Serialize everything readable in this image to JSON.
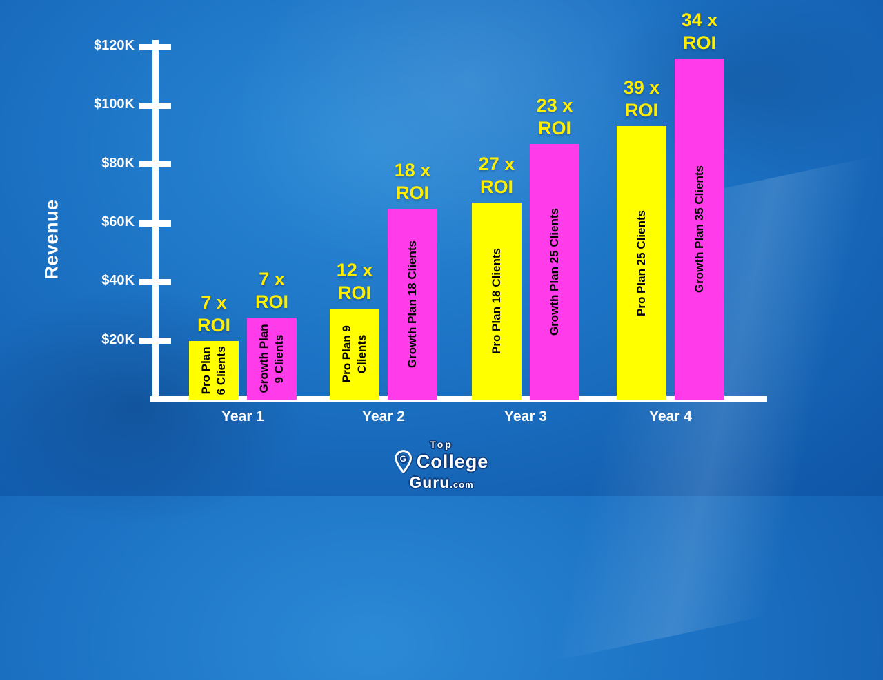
{
  "chart_data": {
    "type": "bar",
    "ylabel": "Revenue",
    "xlabel": "",
    "categories": [
      "Year 1",
      "Year 2",
      "Year 3",
      "Year 4"
    ],
    "ylim": [
      0,
      120
    ],
    "value_unit": "$K",
    "grid": false,
    "legend_position": "none",
    "y_ticks": [
      {
        "label": "$20K",
        "value": 20
      },
      {
        "label": "$40K",
        "value": 40
      },
      {
        "label": "$60K",
        "value": 60
      },
      {
        "label": "$80K",
        "value": 80
      },
      {
        "label": "$100K",
        "value": 100
      },
      {
        "label": "$120K",
        "value": 120
      }
    ],
    "series": [
      {
        "name": "Pro Plan",
        "color": "#FFFF00",
        "values": [
          20,
          31,
          67,
          93
        ],
        "bar_labels": [
          "Pro Plan 6 Clients",
          "Pro Plan 9 Clients",
          "Pro Plan 18 Clients",
          "Pro Plan 25 Clients"
        ],
        "roi_labels": [
          "7 x\nROI",
          "12 x\nROI",
          "27 x\nROI",
          "39 x\nROI"
        ]
      },
      {
        "name": "Growth Plan",
        "color": "#FF3BEA",
        "values": [
          28,
          65,
          87,
          116
        ],
        "bar_labels": [
          "Growth Plan 9 Clients",
          "Growth Plan 18 Clients",
          "Growth Plan 25 Clients",
          "Growth Plan 35 Clients"
        ],
        "roi_labels": [
          "7 x\nROI",
          "18 x\nROI",
          "23 x\nROI",
          "34 x\nROI"
        ]
      }
    ],
    "colors": {
      "axis": "#FFFFFF",
      "roi_text": "#FFEE00",
      "bar_text": "#000000",
      "background": "#1C72C4"
    }
  },
  "branding": {
    "top": "Top",
    "college": "College",
    "guru": "Guru",
    "com": ".com"
  }
}
